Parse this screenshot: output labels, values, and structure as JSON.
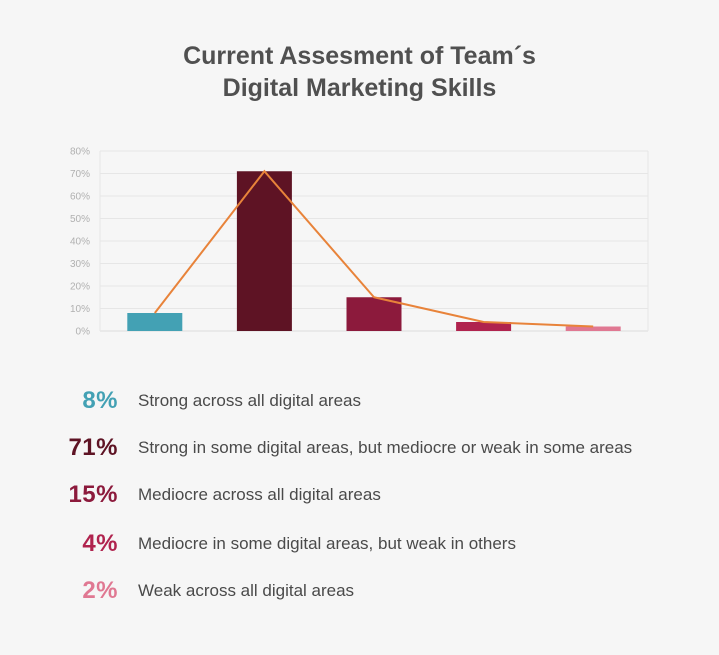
{
  "title_line1": "Current Assesment of Team´s",
  "title_line2": "Digital Marketing Skills",
  "chart_data": {
    "type": "bar",
    "categories": [
      "Strong across all digital areas",
      "Strong in some digital areas, but mediocre or weak in some areas",
      "Mediocre across all digital areas",
      "Mediocre in some digital areas, but weak in others",
      "Weak across all digital areas"
    ],
    "values": [
      8,
      71,
      15,
      4,
      2
    ],
    "overlay_line": true,
    "line_color": "#e8833a",
    "colors": [
      "#43a1b4",
      "#5e1324",
      "#8c1a3c",
      "#b0234e",
      "#e07892"
    ],
    "y_ticks": [
      "0%",
      "10%",
      "20%",
      "30%",
      "40%",
      "50%",
      "60%",
      "70%",
      "80%"
    ],
    "ylim": [
      0,
      80
    ],
    "grid": true,
    "xlabel": "",
    "ylabel": ""
  },
  "legend": [
    {
      "pct": "8%",
      "label": "Strong across all digital areas",
      "color": "#43a1b4"
    },
    {
      "pct": "71%",
      "label": "Strong in some digital areas, but mediocre or weak in some areas",
      "color": "#5e1324"
    },
    {
      "pct": "15%",
      "label": "Mediocre across all digital areas",
      "color": "#8c1a3c"
    },
    {
      "pct": "4%",
      "label": "Mediocre in some digital areas, but weak in others",
      "color": "#b0234e"
    },
    {
      "pct": "2%",
      "label": "Weak across all digital areas",
      "color": "#e07892"
    }
  ]
}
